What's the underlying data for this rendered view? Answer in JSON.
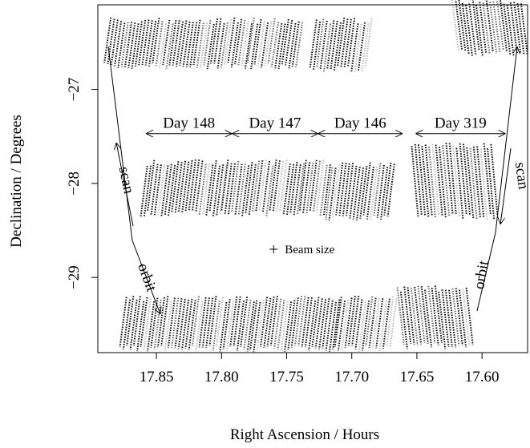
{
  "chart_data": {
    "type": "scatter",
    "title": "",
    "xlabel": "Right Ascension / Hours",
    "ylabel": "Declination / Degrees",
    "xlim": [
      17.895,
      17.565
    ],
    "ylim": [
      -29.8,
      -26.1
    ],
    "x_ticks": [
      17.85,
      17.8,
      17.75,
      17.7,
      17.65,
      17.6
    ],
    "x_tick_labels": [
      "17.85",
      "17.80",
      "17.75",
      "17.70",
      "17.65",
      "17.60"
    ],
    "y_ticks": [
      -27,
      -28,
      -29
    ],
    "y_tick_labels": [
      "−27",
      "−28",
      "−29"
    ],
    "grid": false,
    "legend": "none",
    "scan_blocks": [
      {
        "x0": 17.885,
        "x1": 17.835,
        "y_top": -26.27,
        "y_bottom": -26.75,
        "dx_slant": 0.005
      },
      {
        "x0": 17.835,
        "x1": 17.775,
        "y_top": -26.27,
        "y_bottom": -26.75,
        "dx_slant": 0.005
      },
      {
        "x0": 17.775,
        "x1": 17.737,
        "y_top": -26.27,
        "y_bottom": -26.75,
        "dx_slant": 0.005
      },
      {
        "x0": 17.727,
        "x1": 17.683,
        "y_top": -26.27,
        "y_bottom": -26.78,
        "dx_slant": 0.005
      },
      {
        "x0": 17.623,
        "x1": 17.568,
        "y_top": -26.07,
        "y_bottom": -26.62,
        "dx_slant": -0.005
      },
      {
        "x0": 17.857,
        "x1": 17.795,
        "y_top": -27.78,
        "y_bottom": -28.32,
        "dx_slant": 0.005
      },
      {
        "x0": 17.795,
        "x1": 17.735,
        "y_top": -27.78,
        "y_bottom": -28.32,
        "dx_slant": 0.005
      },
      {
        "x0": 17.735,
        "x1": 17.715,
        "y_top": -27.78,
        "y_bottom": -28.32,
        "dx_slant": 0.005
      },
      {
        "x0": 17.715,
        "x1": 17.665,
        "y_top": -27.8,
        "y_bottom": -28.36,
        "dx_slant": 0.005
      },
      {
        "x0": 17.654,
        "x1": 17.592,
        "y_top": -27.6,
        "y_bottom": -28.36,
        "dx_slant": -0.005
      },
      {
        "x0": 17.873,
        "x1": 17.773,
        "y_top": -29.23,
        "y_bottom": -29.76,
        "dx_slant": 0.005
      },
      {
        "x0": 17.773,
        "x1": 17.708,
        "y_top": -29.23,
        "y_bottom": -29.76,
        "dx_slant": 0.005
      },
      {
        "x0": 17.708,
        "x1": 17.665,
        "y_top": -29.23,
        "y_bottom": -29.76,
        "dx_slant": 0.005
      },
      {
        "x0": 17.665,
        "x1": 17.61,
        "y_top": -29.12,
        "y_bottom": -29.73,
        "dx_slant": -0.005
      }
    ],
    "day_labels": [
      {
        "label": "Day 148",
        "x_left": 17.858,
        "x_right": 17.792,
        "y": -27.47
      },
      {
        "label": "Day 147",
        "x_left": 17.792,
        "x_right": 17.726,
        "y": -27.47
      },
      {
        "label": "Day 146",
        "x_left": 17.726,
        "x_right": 17.661,
        "y": -27.47
      },
      {
        "label": "Day 319",
        "x_left": 17.651,
        "x_right": 17.582,
        "y": -27.47
      }
    ],
    "scan_label": "scan",
    "orbit_label": "orbit",
    "beam_label": "Beam size",
    "beam_marker": {
      "x": 17.76,
      "y": -28.7
    }
  }
}
